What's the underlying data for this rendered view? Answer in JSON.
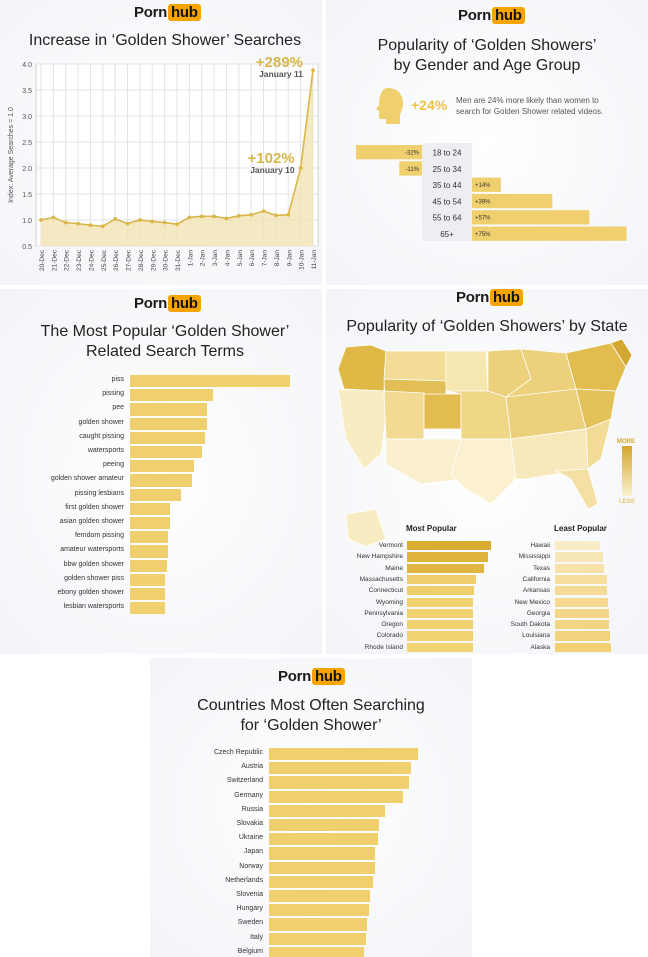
{
  "brand": {
    "word": "Porn",
    "badge": "hub"
  },
  "chart1": {
    "title": "Increase in ‘Golden Shower’ Searches",
    "ylabel": "Index: Average Searches = 1.0",
    "ann1": {
      "value": "+289%",
      "date": "January 11"
    },
    "ann2": {
      "value": "+102%",
      "date": "January 10"
    },
    "chart_data": {
      "type": "line",
      "x": [
        "20-Dec",
        "21-Dec",
        "22-Dec",
        "23-Dec",
        "24-Dec",
        "25-Dec",
        "26-Dec",
        "27-Dec",
        "28-Dec",
        "29-Dec",
        "30-Dec",
        "31-Dec",
        "1-Jan",
        "2-Jan",
        "3-Jan",
        "4-Jan",
        "5-Jan",
        "6-Jan",
        "7-Jan",
        "8-Jan",
        "9-Jan",
        "10-Jan",
        "11-Jan"
      ],
      "values": [
        1.0,
        1.05,
        0.95,
        0.93,
        0.9,
        0.88,
        1.02,
        0.93,
        1.0,
        0.97,
        0.95,
        0.92,
        1.05,
        1.07,
        1.07,
        1.03,
        1.08,
        1.1,
        1.17,
        1.09,
        1.1,
        2.0,
        3.88
      ],
      "yticks": [
        "0.5",
        "1.0",
        "1.5",
        "2.0",
        "2.5",
        "3.0",
        "3.5",
        "4.0"
      ],
      "ylim": [
        0.5,
        4.0
      ],
      "grid": true,
      "colors": {
        "line": "#d9b74a",
        "fill": "#f3e3b4"
      }
    }
  },
  "chart2": {
    "title": "Popularity of ‘Golden Showers’ by Gender and Age Group",
    "title_line1": "Popularity of ‘Golden Showers’",
    "title_line2": "by Gender and Age Group",
    "gender_pct": "+24%",
    "gender_note_1": "Men are 24% more likely than women to",
    "gender_note_2": "search for Golden Shower related videos.",
    "chart_data": {
      "type": "bar",
      "categories": [
        "18 to 24",
        "25 to 34",
        "35 to 44",
        "45 to 54",
        "55 to 64",
        "65+"
      ],
      "values": [
        -32,
        -11,
        14,
        39,
        57,
        75
      ],
      "labels": [
        "-32%",
        "-11%",
        "+14%",
        "+39%",
        "+57%",
        "+75%"
      ]
    }
  },
  "chart3": {
    "title_line1": "The Most Popular ‘Golden Shower’",
    "title_line2": "Related Search Terms",
    "chart_data": {
      "type": "bar",
      "categories": [
        "piss",
        "pissing",
        "pee",
        "golden shower",
        "caught pissing",
        "watersports",
        "peeing",
        "golden shower amateur",
        "pissing lesbians",
        "first golden shower",
        "asian golden shower",
        "femdom pissing",
        "amateur watersports",
        "bbw golden shower",
        "golden shower piss",
        "ebony golden shower",
        "lesbian watersports"
      ],
      "values": [
        100,
        52,
        48,
        48,
        47,
        45,
        40,
        39,
        32,
        25,
        25,
        24,
        24,
        23,
        22,
        22,
        22
      ]
    }
  },
  "chart4": {
    "title": "Popularity of ‘Golden Showers’ by State",
    "legend_more": "MORE",
    "legend_less": "LESS",
    "most_title": "Most Popular",
    "least_title": "Least Popular",
    "chart_data": {
      "type": "bar",
      "most": {
        "categories": [
          "Vermont",
          "New Hampshire",
          "Maine",
          "Massachusetts",
          "Connecticut",
          "Wyoming",
          "Pennsylvania",
          "Oregon",
          "Colorado",
          "Rhode Island"
        ],
        "values": [
          100,
          97,
          92,
          82,
          80,
          79,
          79,
          79,
          79,
          78
        ]
      },
      "least": {
        "categories": [
          "Hawaii",
          "Mississippi",
          "Texas",
          "California",
          "Arkansas",
          "New Mexico",
          "Georgia",
          "South Dakota",
          "Louisiana",
          "Alaska"
        ],
        "values": [
          80,
          86,
          88,
          92,
          93,
          94,
          96,
          97,
          98,
          100
        ]
      }
    }
  },
  "chart5": {
    "title_line1": "Countries Most Often Searching",
    "title_line2": "for ‘Golden Shower’",
    "chart_data": {
      "type": "bar",
      "categories": [
        "Czech Republic",
        "Austria",
        "Switzerland",
        "Germany",
        "Russia",
        "Slovakia",
        "Ukraine",
        "Japan",
        "Norway",
        "Netherlands",
        "Slovenia",
        "Hungary",
        "Sweden",
        "Italy",
        "Belgium"
      ],
      "values": [
        100,
        95,
        94,
        90,
        78,
        74,
        73,
        71,
        71,
        70,
        68,
        67,
        66,
        65,
        64
      ]
    }
  }
}
